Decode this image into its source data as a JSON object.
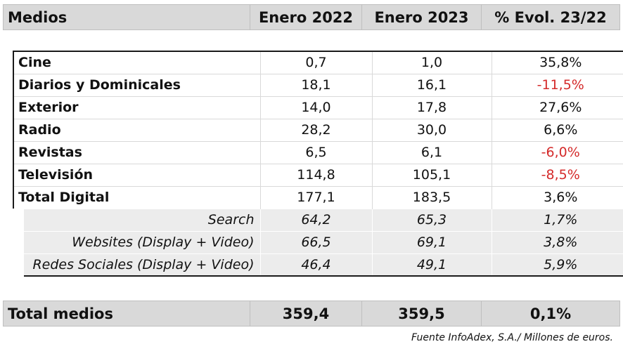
{
  "header": {
    "col1": "Medios",
    "col2": "Enero 2022",
    "col3": "Enero 2023",
    "col4": "% Evol. 23/22"
  },
  "rows": [
    {
      "label": "Cine",
      "v2022": "0,7",
      "v2023": "1,0",
      "evol": "35,8%"
    },
    {
      "label": "Diarios y Dominicales",
      "v2022": "18,1",
      "v2023": "16,1",
      "evol": "-11,5%"
    },
    {
      "label": "Exterior",
      "v2022": "14,0",
      "v2023": "17,8",
      "evol": "27,6%"
    },
    {
      "label": "Radio",
      "v2022": "28,2",
      "v2023": "30,0",
      "evol": "6,6%"
    },
    {
      "label": "Revistas",
      "v2022": "6,5",
      "v2023": "6,1",
      "evol": "-6,0%"
    },
    {
      "label": "Televisión",
      "v2022": "114,8",
      "v2023": "105,1",
      "evol": "-8,5%"
    },
    {
      "label": "Total Digital",
      "v2022": "177,1",
      "v2023": "183,5",
      "evol": "3,6%"
    }
  ],
  "subrows": [
    {
      "label": "Search",
      "v2022": "64,2",
      "v2023": "65,3",
      "evol": "1,7%"
    },
    {
      "label": "Websites (Display + Video)",
      "v2022": "66,5",
      "v2023": "69,1",
      "evol": "3,8%"
    },
    {
      "label": "Redes Sociales (Display + Video)",
      "v2022": "46,4",
      "v2023": "49,1",
      "evol": "5,9%"
    }
  ],
  "total": {
    "label": "Total medios",
    "v2022": "359,4",
    "v2023": "359,5",
    "evol": "0,1%"
  },
  "colors": {
    "negative": "#d42a2a",
    "header_bg": "#d9d9d9",
    "sub_bg": "#ececec"
  },
  "source": "Fuente InfoAdex, S.A./ Millones de euros."
}
